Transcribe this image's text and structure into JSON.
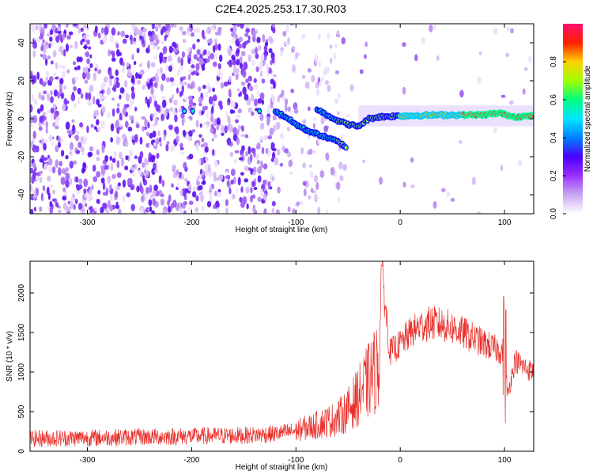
{
  "figure_title": "C2E4.2025.253.17.30.R03",
  "colors": {
    "signal_line": "#e8312c",
    "colorbar_stops": [
      "#ffffff",
      "#c8a8f0",
      "#9b30ff",
      "#4b00ff",
      "#0080ff",
      "#00e5ff",
      "#00ff80",
      "#a0ff00",
      "#ffd000",
      "#ff2000",
      "#ff1070"
    ]
  },
  "chart_data": [
    {
      "type": "heatmap",
      "title": "",
      "xlabel": "Height of straight line (km)",
      "ylabel": "Frequency (Hz)",
      "xlim": [
        -355,
        128
      ],
      "ylim": [
        -50,
        50
      ],
      "xticks": [
        -300,
        -200,
        -100,
        0,
        100
      ],
      "yticks": [
        -40,
        -20,
        0,
        20,
        40
      ],
      "colorbar": {
        "label": "Normalized spectral amplitude",
        "range": [
          0,
          1
        ],
        "ticks": [
          "0.0",
          "0.2",
          "0.4",
          "0.6",
          "0.8"
        ]
      },
      "ridge_trace": [
        {
          "x": -120,
          "y": 4
        },
        {
          "x": -110,
          "y": 1
        },
        {
          "x": -100,
          "y": -3
        },
        {
          "x": -90,
          "y": -6
        },
        {
          "x": -80,
          "y": -8
        },
        {
          "x": -70,
          "y": -10
        },
        {
          "x": -60,
          "y": -12
        },
        {
          "x": -52,
          "y": -15
        },
        {
          "x": -80,
          "y": 5
        },
        {
          "x": -70,
          "y": 2
        },
        {
          "x": -60,
          "y": -1
        },
        {
          "x": -50,
          "y": -3
        },
        {
          "x": -40,
          "y": -4
        },
        {
          "x": -30,
          "y": 0
        },
        {
          "x": -20,
          "y": 1
        },
        {
          "x": 0,
          "y": 1.5
        },
        {
          "x": 40,
          "y": 2
        },
        {
          "x": 80,
          "y": 2
        },
        {
          "x": 95,
          "y": 3
        },
        {
          "x": 110,
          "y": 1
        },
        {
          "x": 128,
          "y": 1.5
        }
      ]
    },
    {
      "type": "line",
      "title": "",
      "xlabel": "Height of straight line (km)",
      "ylabel": "SNR (10 * v/v)",
      "xlim": [
        -355,
        128
      ],
      "ylim": [
        0,
        2400
      ],
      "xticks": [
        -300,
        -200,
        -100,
        0,
        100
      ],
      "yticks": [
        0,
        500,
        1000,
        1500,
        2000
      ],
      "series": [
        {
          "x": [
            -355,
            -300,
            -250,
            -200,
            -150,
            -120,
            -100,
            -80,
            -60,
            -50,
            -40,
            -30,
            -20,
            -18,
            -10,
            0,
            10,
            20,
            30,
            40,
            50,
            60,
            70,
            80,
            90,
            100,
            103,
            110,
            120,
            128
          ],
          "y": [
            160,
            170,
            180,
            190,
            200,
            220,
            260,
            330,
            420,
            520,
            700,
            900,
            1100,
            2350,
            1250,
            1350,
            1500,
            1580,
            1620,
            1600,
            1560,
            1500,
            1430,
            1360,
            1300,
            1250,
            700,
            1150,
            1050,
            1000
          ]
        }
      ]
    }
  ]
}
